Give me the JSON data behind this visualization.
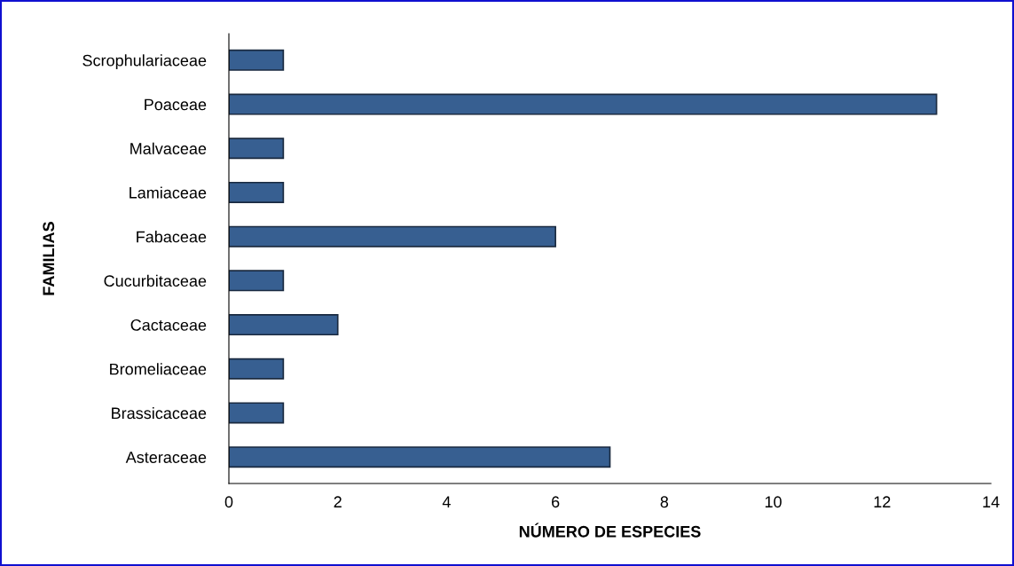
{
  "chart_data": {
    "type": "bar",
    "orientation": "horizontal",
    "xlabel": "NÚMERO DE ESPECIES",
    "ylabel": "FAMILIAS",
    "categories": [
      "Scrophulariaceae",
      "Poaceae",
      "Malvaceae",
      "Lamiaceae",
      "Fabaceae",
      "Cucurbitaceae",
      "Cactaceae",
      "Bromeliaceae",
      "Brassicaceae",
      "Asteraceae"
    ],
    "values": [
      1,
      13,
      1,
      1,
      6,
      1,
      2,
      1,
      1,
      7
    ],
    "color": "#375f91",
    "xlim": [
      0,
      14
    ],
    "xticks": [
      0,
      2,
      4,
      6,
      8,
      10,
      12,
      14
    ],
    "grid": false,
    "legend": false
  }
}
